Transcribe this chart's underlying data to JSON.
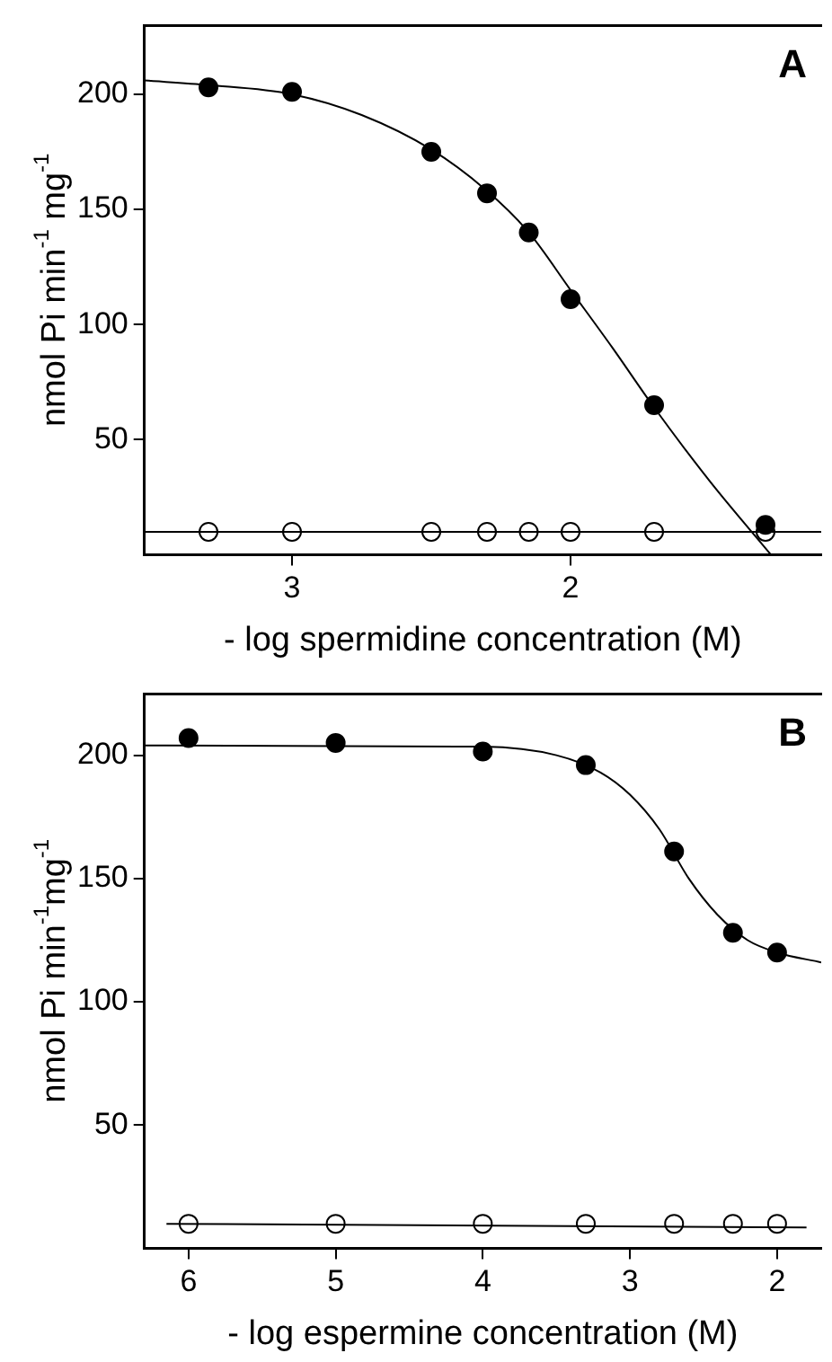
{
  "chart_data": [
    {
      "type": "scatter",
      "xlabel": "- log spermidine concentration (M)",
      "ylabel": "nmol Pi min$^{-1}$ mg$^{-1}$",
      "annotations": [
        "A"
      ],
      "xlim": [
        3.53,
        1.1
      ],
      "xticks": [
        3,
        2
      ],
      "ylim": [
        0,
        230
      ],
      "yticks": [
        50,
        100,
        150,
        200
      ],
      "grid": false,
      "legend": false,
      "series": [
        {
          "type": "line",
          "color": "#000000",
          "marker": "none",
          "line_style": "solid",
          "x": [
            3.53,
            3.3,
            3.0,
            2.75,
            2.5,
            2.3,
            2.15,
            2.0,
            1.85,
            1.7,
            1.5,
            1.28
          ],
          "values": [
            206,
            204,
            200,
            191,
            176,
            158,
            140,
            115,
            90,
            64,
            32,
            0
          ]
        },
        {
          "type": "line",
          "color": "#000000",
          "marker": "none",
          "line_style": "solid",
          "x": [
            3.53,
            1.1
          ],
          "values": [
            10,
            10
          ]
        },
        {
          "type": "scatter",
          "color": "#000000",
          "marker": "circle",
          "x": [
            3.3,
            3.0,
            2.5,
            2.3,
            2.15,
            2.0,
            1.7,
            1.3
          ],
          "values": [
            203,
            201,
            175,
            157,
            140,
            111,
            65,
            13
          ]
        },
        {
          "type": "scatter",
          "color": "#ffffff",
          "marker": "circle",
          "x": [
            3.3,
            3.0,
            2.5,
            2.3,
            2.15,
            2.0,
            1.7,
            1.3
          ],
          "values": [
            10,
            10,
            10,
            10,
            10,
            10,
            10,
            10
          ]
        }
      ]
    },
    {
      "type": "scatter",
      "xlabel": "- log espermine concentration (M)",
      "ylabel": "nmol Pi min$^{-1}$mg$^{-1}$",
      "annotations": [
        "B"
      ],
      "xlim": [
        6.3,
        1.7
      ],
      "xticks": [
        6,
        5,
        4,
        3,
        2
      ],
      "ylim": [
        0,
        225
      ],
      "yticks": [
        50,
        100,
        150,
        200
      ],
      "grid": false,
      "legend": false,
      "series": [
        {
          "type": "line",
          "color": "#000000",
          "marker": "none",
          "line_style": "solid",
          "x": [
            6.3,
            4.0,
            3.5,
            3.2,
            3.0,
            2.8,
            2.6,
            2.4,
            2.2,
            2.0,
            1.7
          ],
          "values": [
            204,
            203.5,
            200,
            193,
            184,
            170,
            150,
            135,
            125,
            120,
            116
          ]
        },
        {
          "type": "line",
          "color": "#000000",
          "marker": "none",
          "line_style": "solid",
          "x": [
            6.15,
            1.8
          ],
          "values": [
            10,
            8.5
          ]
        },
        {
          "type": "scatter",
          "color": "#000000",
          "marker": "circle",
          "x": [
            6,
            5,
            4,
            3.3,
            2.7,
            2.3,
            2.0
          ],
          "values": [
            207,
            205,
            201.5,
            196,
            161,
            128,
            120
          ]
        },
        {
          "type": "scatter",
          "color": "#ffffff",
          "marker": "circle",
          "x": [
            6,
            5,
            4,
            3.3,
            2.7,
            2.3,
            2.0
          ],
          "values": [
            10,
            10,
            10,
            10,
            10,
            10,
            10
          ]
        }
      ]
    }
  ]
}
